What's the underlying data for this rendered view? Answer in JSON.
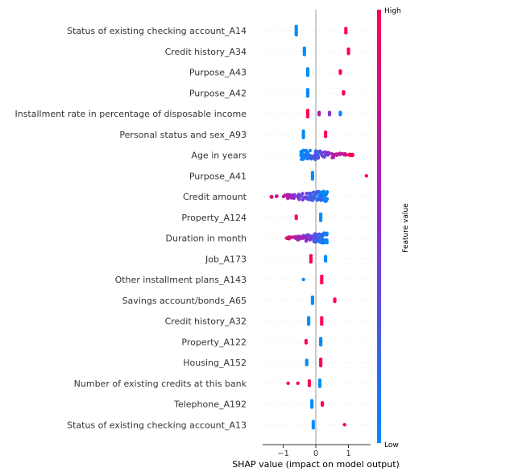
{
  "chart_data": {
    "type": "scatter",
    "subtype": "shap-beeswarm-summary",
    "xlabel": "SHAP value (impact on model output)",
    "xlim": [
      -1.65,
      1.7
    ],
    "xticks": [
      -1,
      0,
      1
    ],
    "colorbar": {
      "title": "Feature value",
      "high_label": "High",
      "low_label": "Low",
      "low_color": "#008bfb",
      "high_color": "#ff0052"
    },
    "features": [
      {
        "name": "Status of existing checking account_A14",
        "points": [
          [
            -0.6,
            0
          ],
          [
            -0.6,
            0
          ],
          [
            -0.6,
            0
          ],
          [
            -0.6,
            0
          ],
          [
            -0.6,
            0
          ],
          [
            0.92,
            1
          ],
          [
            0.92,
            1
          ],
          [
            0.92,
            1
          ]
        ]
      },
      {
        "name": "Credit history_A34",
        "points": [
          [
            -0.35,
            0
          ],
          [
            -0.35,
            0
          ],
          [
            -0.35,
            0
          ],
          [
            -0.35,
            0
          ],
          [
            1.0,
            1
          ],
          [
            1.0,
            1
          ],
          [
            1.0,
            1
          ]
        ]
      },
      {
        "name": "Purpose_A43",
        "points": [
          [
            -0.25,
            0
          ],
          [
            -0.25,
            0
          ],
          [
            -0.25,
            0
          ],
          [
            -0.25,
            0
          ],
          [
            0.75,
            1
          ],
          [
            0.75,
            1
          ]
        ]
      },
      {
        "name": "Purpose_A42",
        "points": [
          [
            -0.25,
            0
          ],
          [
            -0.25,
            0
          ],
          [
            -0.25,
            0
          ],
          [
            -0.25,
            0
          ],
          [
            0.85,
            1
          ],
          [
            0.85,
            1
          ]
        ]
      },
      {
        "name": "Installment rate in percentage of disposable income",
        "points": [
          [
            -0.25,
            1
          ],
          [
            -0.25,
            1
          ],
          [
            -0.25,
            1
          ],
          [
            -0.25,
            1
          ],
          [
            0.1,
            0.65
          ],
          [
            0.1,
            0.65
          ],
          [
            0.42,
            0.45
          ],
          [
            0.42,
            0.45
          ],
          [
            0.75,
            0.05
          ],
          [
            0.75,
            0.05
          ]
        ]
      },
      {
        "name": "Personal status and sex_A93",
        "points": [
          [
            -0.38,
            0
          ],
          [
            -0.38,
            0
          ],
          [
            -0.38,
            0
          ],
          [
            -0.38,
            0
          ],
          [
            0.3,
            1
          ],
          [
            0.3,
            1
          ],
          [
            0.3,
            1
          ]
        ]
      },
      {
        "name": "Age in years",
        "range": [
          -0.45,
          1.15
        ],
        "color_trend": "low-left-high-right"
      },
      {
        "name": "Purpose_A41",
        "points": [
          [
            -0.1,
            0
          ],
          [
            -0.1,
            0
          ],
          [
            -0.1,
            0
          ],
          [
            -0.1,
            0
          ],
          [
            1.55,
            1
          ]
        ]
      },
      {
        "name": "Credit amount",
        "range": [
          -1.5,
          0.35
        ],
        "color_trend": "high-left-low-right"
      },
      {
        "name": "Property_A124",
        "points": [
          [
            -0.6,
            1
          ],
          [
            -0.6,
            1
          ],
          [
            0.15,
            0
          ],
          [
            0.15,
            0
          ],
          [
            0.15,
            0
          ],
          [
            0.15,
            0
          ]
        ]
      },
      {
        "name": "Duration in month",
        "range": [
          -1.05,
          0.35
        ],
        "color_trend": "high-left-low-right"
      },
      {
        "name": "Job_A173",
        "points": [
          [
            -0.15,
            1
          ],
          [
            -0.15,
            1
          ],
          [
            -0.15,
            1
          ],
          [
            -0.15,
            1
          ],
          [
            0.3,
            0
          ],
          [
            0.3,
            0
          ],
          [
            0.3,
            0
          ]
        ]
      },
      {
        "name": "Other installment plans_A143",
        "points": [
          [
            -0.38,
            0
          ],
          [
            0.18,
            1
          ],
          [
            0.18,
            1
          ],
          [
            0.18,
            1
          ],
          [
            0.18,
            1
          ]
        ]
      },
      {
        "name": "Savings account/bonds_A65",
        "points": [
          [
            -0.1,
            0
          ],
          [
            -0.1,
            0
          ],
          [
            -0.1,
            0
          ],
          [
            -0.1,
            0
          ],
          [
            0.58,
            1
          ],
          [
            0.58,
            1
          ]
        ]
      },
      {
        "name": "Credit history_A32",
        "points": [
          [
            -0.22,
            0
          ],
          [
            -0.22,
            0
          ],
          [
            -0.22,
            0
          ],
          [
            -0.22,
            0
          ],
          [
            0.18,
            1
          ],
          [
            0.18,
            1
          ],
          [
            0.18,
            1
          ],
          [
            0.18,
            1
          ]
        ]
      },
      {
        "name": "Property_A122",
        "points": [
          [
            -0.3,
            1
          ],
          [
            -0.3,
            1
          ],
          [
            0.15,
            0
          ],
          [
            0.15,
            0
          ],
          [
            0.15,
            0
          ],
          [
            0.15,
            0
          ]
        ]
      },
      {
        "name": "Housing_A152",
        "points": [
          [
            -0.28,
            0
          ],
          [
            -0.28,
            0
          ],
          [
            -0.28,
            0
          ],
          [
            0.15,
            1
          ],
          [
            0.15,
            1
          ],
          [
            0.15,
            1
          ],
          [
            0.15,
            1
          ]
        ]
      },
      {
        "name": "Number of existing credits at this bank",
        "points": [
          [
            -0.85,
            1
          ],
          [
            -0.55,
            1
          ],
          [
            -0.2,
            1
          ],
          [
            -0.2,
            1
          ],
          [
            -0.2,
            1
          ],
          [
            0.12,
            0
          ],
          [
            0.12,
            0
          ],
          [
            0.12,
            0
          ],
          [
            0.12,
            0
          ]
        ]
      },
      {
        "name": "Telephone_A192",
        "points": [
          [
            -0.12,
            0
          ],
          [
            -0.12,
            0
          ],
          [
            -0.12,
            0
          ],
          [
            -0.12,
            0
          ],
          [
            0.2,
            1
          ],
          [
            0.2,
            1
          ]
        ]
      },
      {
        "name": "Status of existing checking account_A13",
        "points": [
          [
            -0.08,
            0
          ],
          [
            -0.08,
            0
          ],
          [
            -0.08,
            0
          ],
          [
            -0.08,
            0
          ],
          [
            0.88,
            1
          ]
        ]
      }
    ]
  }
}
